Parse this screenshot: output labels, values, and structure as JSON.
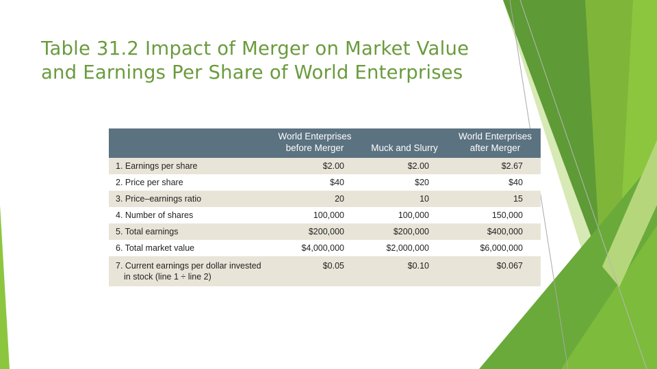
{
  "slide": {
    "title_line1": "Table 31.2 Impact of Merger on Market Value",
    "title_line2": "and Earnings Per Share of World Enterprises"
  },
  "table": {
    "headers": {
      "label": "",
      "col1_line1": "World Enterprises",
      "col1_line2": "before Merger",
      "col2": "Muck and Slurry",
      "col3_line1": "World Enterprises",
      "col3_line2": "after Merger"
    },
    "rows": [
      {
        "label": "1. Earnings per share",
        "before": "$2.00",
        "muck": "$2.00",
        "after": "$2.67"
      },
      {
        "label": "2. Price per share",
        "before": "$40",
        "muck": "$20",
        "after": "$40"
      },
      {
        "label": "3. Price–earnings ratio",
        "before": "20",
        "muck": "10",
        "after": "15"
      },
      {
        "label": "4. Number of shares",
        "before": "100,000",
        "muck": "100,000",
        "after": "150,000"
      },
      {
        "label": "5. Total earnings",
        "before": "$200,000",
        "muck": "$200,000",
        "after": "$400,000"
      },
      {
        "label": "6. Total market value",
        "before": "$4,000,000",
        "muck": "$2,000,000",
        "after": "$6,000,000"
      },
      {
        "label": "7. Current earnings per dollar invested",
        "label_line2": "in stock (line 1 ÷ line 2)",
        "before": "$0.05",
        "muck": "$0.10",
        "after": "$0.067"
      }
    ]
  },
  "colors": {
    "title": "#6a9b3d",
    "header_bg": "#5b7280",
    "row_shade": "#e8e4d8",
    "accent_green": "#7cb342"
  }
}
